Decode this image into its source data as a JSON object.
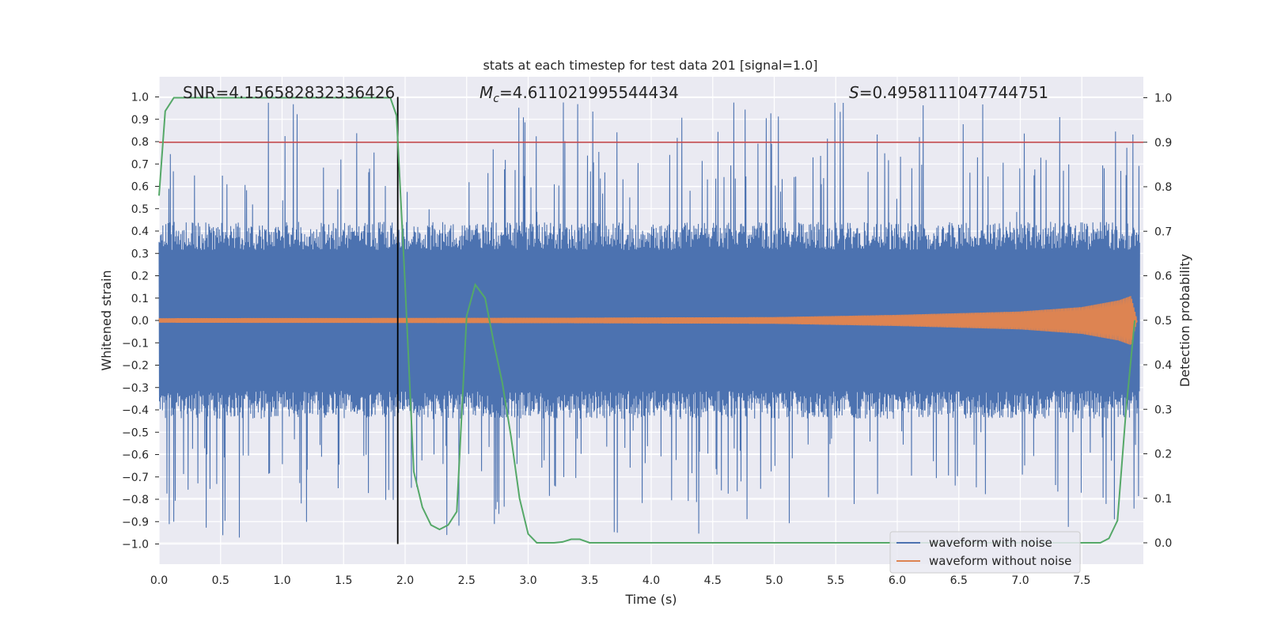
{
  "chart_data": {
    "type": "line",
    "title": "stats at each timestep for test data 201 [signal=1.0]",
    "xlabel": "Time (s)",
    "ylabel_left": "Whitened strain",
    "ylabel_right": "Detection probability",
    "xlim": [
      0.0,
      8.0
    ],
    "ylim_left": [
      -1.1,
      1.1
    ],
    "ylim_right": [
      -0.05,
      1.05
    ],
    "x_ticks": [
      "0.0",
      "0.5",
      "1.0",
      "1.5",
      "2.0",
      "2.5",
      "3.0",
      "3.5",
      "4.0",
      "4.5",
      "5.0",
      "5.5",
      "6.0",
      "6.5",
      "7.0",
      "7.5"
    ],
    "y_left_ticks": [
      "1.0",
      "0.9",
      "0.8",
      "0.7",
      "0.6",
      "0.5",
      "0.4",
      "0.3",
      "0.2",
      "0.1",
      "0.0",
      "−0.1",
      "−0.2",
      "−0.3",
      "−0.4",
      "−0.5",
      "−0.6",
      "−0.7",
      "−0.8",
      "−0.9",
      "−1.0"
    ],
    "y_right_ticks": [
      "1.0",
      "0.9",
      "0.8",
      "0.7",
      "0.6",
      "0.5",
      "0.4",
      "0.3",
      "0.2",
      "0.1",
      "0.0"
    ],
    "annotations": {
      "snr": "SNR=4.156582832336426",
      "mc_symbol": "M",
      "mc_sub": "c",
      "mc_value": "=4.611021995544434",
      "s_symbol": "S",
      "s_value": "=0.4958111047744751"
    },
    "threshold_line": {
      "axis": "right",
      "y": 0.9,
      "color": "#c44e52"
    },
    "marker_line": {
      "x": 1.94,
      "y_range": [
        -1.0,
        1.0
      ],
      "color": "#000000"
    },
    "series": [
      {
        "name": "waveform with noise",
        "axis": "left",
        "color": "#4c72b0",
        "description_values": {
          "typical_envelope": [
            -0.42,
            0.42
          ],
          "max": 0.98,
          "min": -1.0,
          "duration": 8.0
        }
      },
      {
        "name": "waveform without noise",
        "axis": "left",
        "color": "#dd8452",
        "envelope": {
          "t": [
            0.0,
            3.0,
            5.0,
            6.0,
            7.0,
            7.5,
            7.8,
            7.9,
            7.95
          ],
          "amp": [
            0.01,
            0.012,
            0.015,
            0.025,
            0.04,
            0.06,
            0.09,
            0.11,
            0.0
          ]
        }
      },
      {
        "name": "detection probability",
        "axis": "right",
        "color": "#55a868",
        "x": [
          0.0,
          0.05,
          0.12,
          0.2,
          0.5,
          1.0,
          1.5,
          1.88,
          1.93,
          2.0,
          2.07,
          2.14,
          2.21,
          2.28,
          2.35,
          2.42,
          2.5,
          2.57,
          2.65,
          2.72,
          2.79,
          2.86,
          2.93,
          3.0,
          3.07,
          3.14,
          3.21,
          3.28,
          3.35,
          3.42,
          3.5,
          4.0,
          5.0,
          6.0,
          7.0,
          7.55,
          7.65,
          7.72,
          7.79,
          7.86,
          7.93
        ],
        "y": [
          0.78,
          0.97,
          1.0,
          1.0,
          1.0,
          1.0,
          1.0,
          1.0,
          0.96,
          0.58,
          0.16,
          0.08,
          0.04,
          0.03,
          0.04,
          0.07,
          0.51,
          0.58,
          0.55,
          0.45,
          0.36,
          0.24,
          0.1,
          0.02,
          0.0,
          0.0,
          0.0,
          0.002,
          0.008,
          0.008,
          0.0,
          0.0,
          0.0,
          0.0,
          0.0,
          0.0,
          0.0,
          0.01,
          0.05,
          0.3,
          0.5
        ]
      }
    ],
    "legend": {
      "placement": "lower-right",
      "entries": [
        {
          "label": "waveform with noise",
          "color": "#4c72b0"
        },
        {
          "label": "waveform without noise",
          "color": "#dd8452"
        }
      ]
    }
  }
}
